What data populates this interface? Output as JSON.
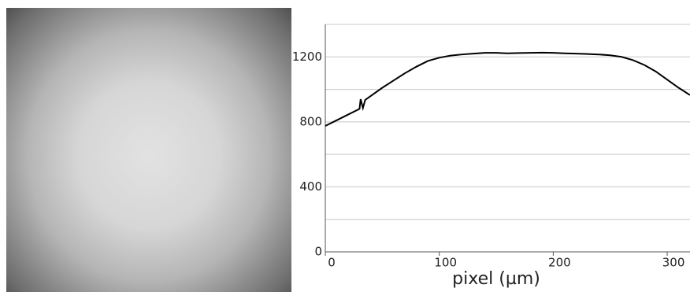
{
  "chart_data": {
    "type": "line",
    "x_label": "pixel (µm)",
    "x": [
      0,
      10,
      20,
      30,
      31,
      33,
      35,
      40,
      50,
      60,
      70,
      80,
      90,
      100,
      110,
      120,
      130,
      140,
      150,
      160,
      170,
      180,
      190,
      200,
      210,
      220,
      230,
      240,
      250,
      260,
      270,
      280,
      290,
      300,
      310,
      320
    ],
    "series": [
      {
        "color": "#000000",
        "values": [
          775,
          810,
          845,
          880,
          940,
          885,
          935,
          960,
          1010,
          1055,
          1100,
          1140,
          1175,
          1195,
          1208,
          1215,
          1220,
          1225,
          1225,
          1222,
          1224,
          1225,
          1226,
          1225,
          1222,
          1220,
          1218,
          1215,
          1210,
          1200,
          1180,
          1150,
          1110,
          1060,
          1010,
          965
        ]
      }
    ],
    "xlim": [
      0,
      320
    ],
    "xticks": [
      0,
      100,
      200,
      300
    ],
    "ylim": [
      0,
      1400
    ],
    "yticks": [
      0,
      400,
      800,
      1200
    ],
    "minor_yticks": [
      200,
      600,
      1000,
      1400
    ],
    "grid": true
  }
}
